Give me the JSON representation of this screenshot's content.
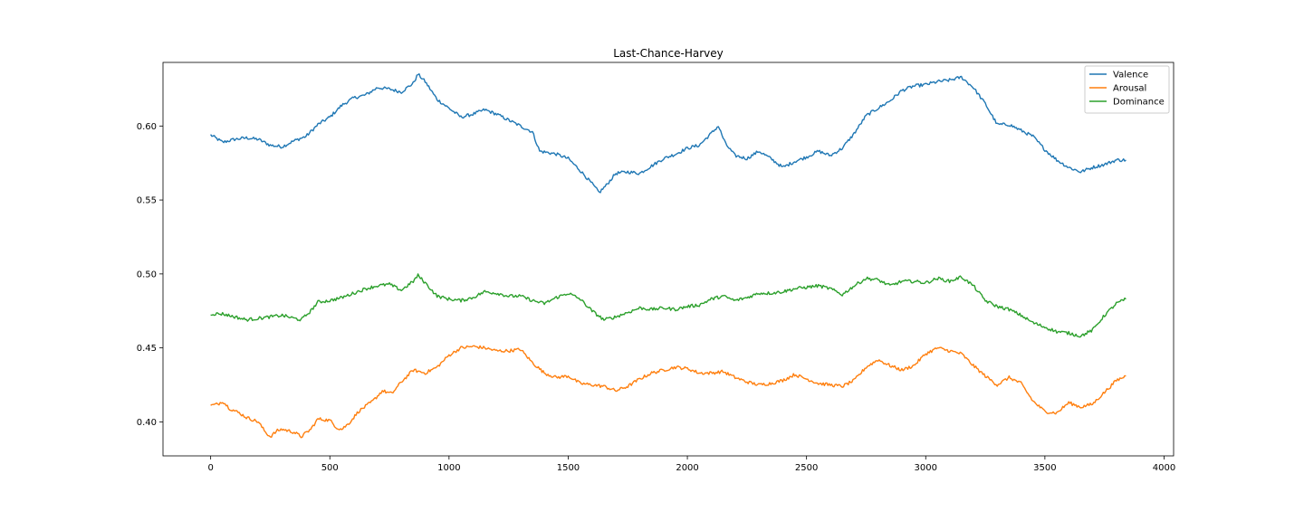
{
  "chart_data": {
    "type": "line",
    "title": "Last-Chance-Harvey",
    "xlabel": "",
    "ylabel": "",
    "xlim": [
      -200,
      4040
    ],
    "ylim": [
      0.377,
      0.643
    ],
    "x_ticks": [
      0,
      500,
      1000,
      1500,
      2000,
      2500,
      3000,
      3500,
      4000
    ],
    "y_ticks": [
      0.4,
      0.45,
      0.5,
      0.55,
      0.6
    ],
    "x_tick_labels": [
      "0",
      "500",
      "1000",
      "1500",
      "2000",
      "2500",
      "3000",
      "3500",
      "4000"
    ],
    "y_tick_labels": [
      "0.40",
      "0.45",
      "0.50",
      "0.55",
      "0.60"
    ],
    "grid": false,
    "legend_position": "top-right",
    "series": [
      {
        "name": "Valence",
        "color": "#1f77b4",
        "points": [
          [
            0,
            0.594
          ],
          [
            50,
            0.589
          ],
          [
            100,
            0.591
          ],
          [
            150,
            0.592
          ],
          [
            200,
            0.591
          ],
          [
            250,
            0.587
          ],
          [
            300,
            0.586
          ],
          [
            350,
            0.59
          ],
          [
            400,
            0.593
          ],
          [
            450,
            0.601
          ],
          [
            500,
            0.606
          ],
          [
            550,
            0.614
          ],
          [
            600,
            0.619
          ],
          [
            650,
            0.621
          ],
          [
            700,
            0.626
          ],
          [
            750,
            0.625
          ],
          [
            800,
            0.623
          ],
          [
            850,
            0.629
          ],
          [
            870,
            0.635
          ],
          [
            900,
            0.63
          ],
          [
            950,
            0.618
          ],
          [
            1000,
            0.612
          ],
          [
            1050,
            0.606
          ],
          [
            1100,
            0.608
          ],
          [
            1150,
            0.611
          ],
          [
            1200,
            0.608
          ],
          [
            1250,
            0.604
          ],
          [
            1300,
            0.6
          ],
          [
            1350,
            0.596
          ],
          [
            1380,
            0.583
          ],
          [
            1450,
            0.581
          ],
          [
            1500,
            0.578
          ],
          [
            1550,
            0.57
          ],
          [
            1600,
            0.561
          ],
          [
            1630,
            0.555
          ],
          [
            1660,
            0.56
          ],
          [
            1700,
            0.568
          ],
          [
            1750,
            0.569
          ],
          [
            1800,
            0.568
          ],
          [
            1850,
            0.573
          ],
          [
            1900,
            0.578
          ],
          [
            1950,
            0.581
          ],
          [
            2000,
            0.585
          ],
          [
            2050,
            0.587
          ],
          [
            2100,
            0.595
          ],
          [
            2130,
            0.6
          ],
          [
            2160,
            0.588
          ],
          [
            2200,
            0.58
          ],
          [
            2250,
            0.578
          ],
          [
            2300,
            0.583
          ],
          [
            2350,
            0.578
          ],
          [
            2400,
            0.572
          ],
          [
            2450,
            0.576
          ],
          [
            2500,
            0.579
          ],
          [
            2550,
            0.583
          ],
          [
            2600,
            0.58
          ],
          [
            2650,
            0.585
          ],
          [
            2700,
            0.595
          ],
          [
            2750,
            0.607
          ],
          [
            2800,
            0.612
          ],
          [
            2850,
            0.617
          ],
          [
            2900,
            0.624
          ],
          [
            2950,
            0.627
          ],
          [
            3000,
            0.628
          ],
          [
            3050,
            0.63
          ],
          [
            3100,
            0.631
          ],
          [
            3150,
            0.633
          ],
          [
            3200,
            0.626
          ],
          [
            3250,
            0.615
          ],
          [
            3300,
            0.601
          ],
          [
            3350,
            0.601
          ],
          [
            3400,
            0.597
          ],
          [
            3450,
            0.593
          ],
          [
            3500,
            0.584
          ],
          [
            3550,
            0.577
          ],
          [
            3600,
            0.572
          ],
          [
            3650,
            0.569
          ],
          [
            3700,
            0.572
          ],
          [
            3750,
            0.574
          ],
          [
            3800,
            0.577
          ],
          [
            3840,
            0.577
          ]
        ]
      },
      {
        "name": "Arousal",
        "color": "#ff7f0e",
        "points": [
          [
            0,
            0.411
          ],
          [
            30,
            0.412
          ],
          [
            50,
            0.414
          ],
          [
            80,
            0.409
          ],
          [
            120,
            0.406
          ],
          [
            150,
            0.403
          ],
          [
            200,
            0.4
          ],
          [
            230,
            0.393
          ],
          [
            250,
            0.39
          ],
          [
            280,
            0.394
          ],
          [
            300,
            0.395
          ],
          [
            350,
            0.393
          ],
          [
            380,
            0.39
          ],
          [
            420,
            0.395
          ],
          [
            450,
            0.402
          ],
          [
            500,
            0.401
          ],
          [
            530,
            0.396
          ],
          [
            550,
            0.395
          ],
          [
            580,
            0.399
          ],
          [
            620,
            0.407
          ],
          [
            680,
            0.414
          ],
          [
            720,
            0.421
          ],
          [
            760,
            0.419
          ],
          [
            800,
            0.427
          ],
          [
            850,
            0.435
          ],
          [
            900,
            0.433
          ],
          [
            950,
            0.437
          ],
          [
            1000,
            0.445
          ],
          [
            1050,
            0.45
          ],
          [
            1100,
            0.451
          ],
          [
            1150,
            0.45
          ],
          [
            1200,
            0.448
          ],
          [
            1250,
            0.448
          ],
          [
            1300,
            0.449
          ],
          [
            1350,
            0.44
          ],
          [
            1400,
            0.433
          ],
          [
            1450,
            0.43
          ],
          [
            1500,
            0.431
          ],
          [
            1550,
            0.426
          ],
          [
            1600,
            0.425
          ],
          [
            1650,
            0.424
          ],
          [
            1700,
            0.421
          ],
          [
            1750,
            0.424
          ],
          [
            1800,
            0.429
          ],
          [
            1850,
            0.433
          ],
          [
            1900,
            0.435
          ],
          [
            1950,
            0.437
          ],
          [
            2000,
            0.436
          ],
          [
            2050,
            0.433
          ],
          [
            2100,
            0.433
          ],
          [
            2150,
            0.434
          ],
          [
            2200,
            0.43
          ],
          [
            2250,
            0.427
          ],
          [
            2300,
            0.425
          ],
          [
            2350,
            0.426
          ],
          [
            2400,
            0.428
          ],
          [
            2450,
            0.432
          ],
          [
            2500,
            0.429
          ],
          [
            2550,
            0.426
          ],
          [
            2600,
            0.425
          ],
          [
            2650,
            0.424
          ],
          [
            2700,
            0.428
          ],
          [
            2750,
            0.437
          ],
          [
            2800,
            0.442
          ],
          [
            2850,
            0.438
          ],
          [
            2900,
            0.435
          ],
          [
            2950,
            0.438
          ],
          [
            3000,
            0.446
          ],
          [
            3050,
            0.45
          ],
          [
            3100,
            0.448
          ],
          [
            3150,
            0.446
          ],
          [
            3200,
            0.438
          ],
          [
            3250,
            0.431
          ],
          [
            3300,
            0.425
          ],
          [
            3350,
            0.43
          ],
          [
            3400,
            0.426
          ],
          [
            3450,
            0.414
          ],
          [
            3500,
            0.407
          ],
          [
            3550,
            0.406
          ],
          [
            3600,
            0.413
          ],
          [
            3650,
            0.41
          ],
          [
            3700,
            0.412
          ],
          [
            3750,
            0.42
          ],
          [
            3800,
            0.428
          ],
          [
            3840,
            0.431
          ]
        ]
      },
      {
        "name": "Dominance",
        "color": "#2ca02c",
        "points": [
          [
            0,
            0.473
          ],
          [
            50,
            0.473
          ],
          [
            100,
            0.471
          ],
          [
            150,
            0.469
          ],
          [
            200,
            0.47
          ],
          [
            250,
            0.471
          ],
          [
            300,
            0.472
          ],
          [
            350,
            0.47
          ],
          [
            380,
            0.469
          ],
          [
            420,
            0.475
          ],
          [
            450,
            0.481
          ],
          [
            500,
            0.482
          ],
          [
            550,
            0.484
          ],
          [
            600,
            0.487
          ],
          [
            650,
            0.49
          ],
          [
            700,
            0.492
          ],
          [
            750,
            0.493
          ],
          [
            800,
            0.489
          ],
          [
            850,
            0.495
          ],
          [
            870,
            0.499
          ],
          [
            900,
            0.494
          ],
          [
            950,
            0.485
          ],
          [
            1000,
            0.483
          ],
          [
            1050,
            0.482
          ],
          [
            1100,
            0.484
          ],
          [
            1150,
            0.488
          ],
          [
            1200,
            0.487
          ],
          [
            1250,
            0.485
          ],
          [
            1300,
            0.485
          ],
          [
            1350,
            0.482
          ],
          [
            1400,
            0.48
          ],
          [
            1450,
            0.484
          ],
          [
            1500,
            0.487
          ],
          [
            1550,
            0.483
          ],
          [
            1600,
            0.475
          ],
          [
            1650,
            0.469
          ],
          [
            1700,
            0.471
          ],
          [
            1750,
            0.474
          ],
          [
            1800,
            0.477
          ],
          [
            1850,
            0.476
          ],
          [
            1900,
            0.477
          ],
          [
            1950,
            0.476
          ],
          [
            2000,
            0.478
          ],
          [
            2050,
            0.479
          ],
          [
            2100,
            0.483
          ],
          [
            2150,
            0.485
          ],
          [
            2200,
            0.482
          ],
          [
            2250,
            0.484
          ],
          [
            2300,
            0.487
          ],
          [
            2350,
            0.487
          ],
          [
            2400,
            0.488
          ],
          [
            2450,
            0.49
          ],
          [
            2500,
            0.491
          ],
          [
            2550,
            0.492
          ],
          [
            2600,
            0.49
          ],
          [
            2650,
            0.486
          ],
          [
            2700,
            0.492
          ],
          [
            2750,
            0.497
          ],
          [
            2800,
            0.496
          ],
          [
            2850,
            0.492
          ],
          [
            2900,
            0.495
          ],
          [
            2950,
            0.495
          ],
          [
            3000,
            0.494
          ],
          [
            3050,
            0.497
          ],
          [
            3100,
            0.495
          ],
          [
            3150,
            0.498
          ],
          [
            3200,
            0.492
          ],
          [
            3250,
            0.482
          ],
          [
            3300,
            0.478
          ],
          [
            3350,
            0.476
          ],
          [
            3400,
            0.472
          ],
          [
            3450,
            0.467
          ],
          [
            3500,
            0.464
          ],
          [
            3550,
            0.461
          ],
          [
            3600,
            0.46
          ],
          [
            3650,
            0.458
          ],
          [
            3700,
            0.462
          ],
          [
            3750,
            0.472
          ],
          [
            3800,
            0.48
          ],
          [
            3840,
            0.483
          ]
        ]
      }
    ]
  }
}
